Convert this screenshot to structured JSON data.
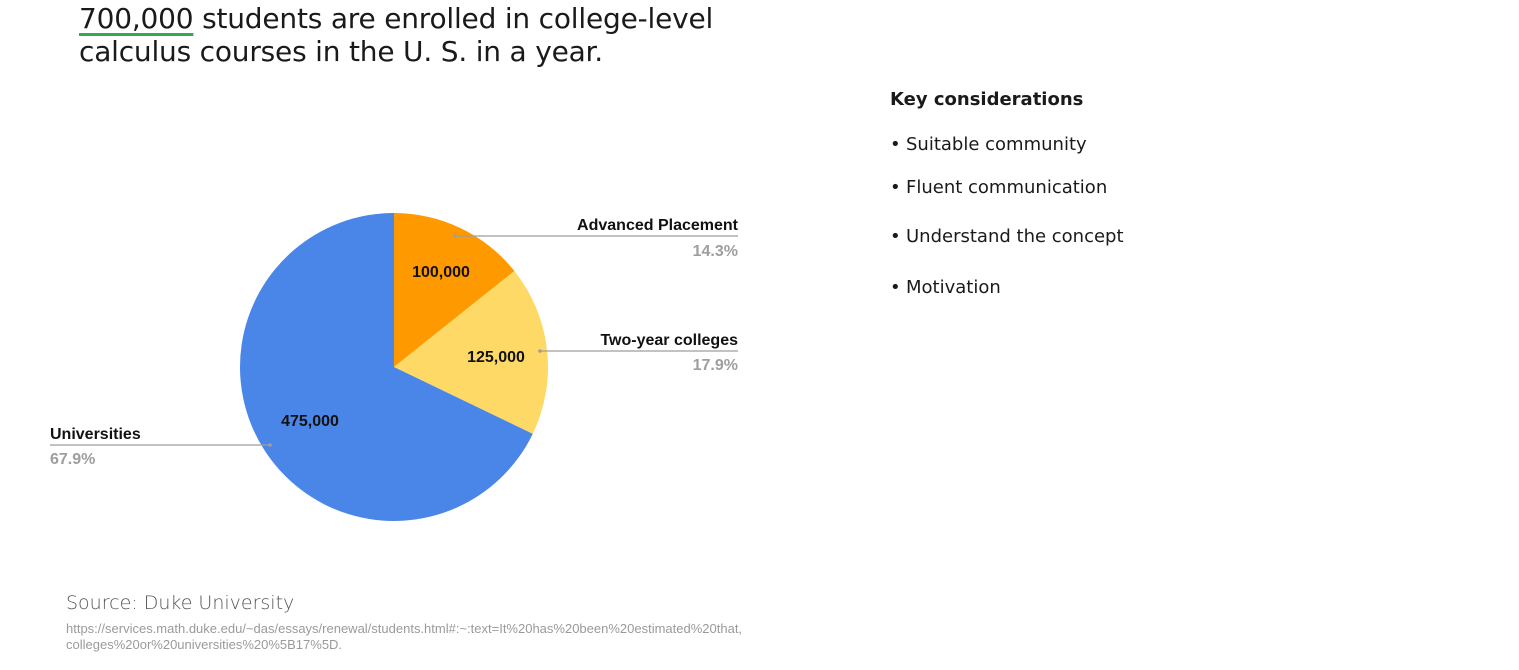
{
  "headline": {
    "highlight": "700,000",
    "rest": " students are enrolled in college-level calculus courses in the U. S. in a year."
  },
  "colors": {
    "accent_underline": "#34a853",
    "universities": "#4a86e8",
    "advanced_placement": "#ff9900",
    "two_year_colleges": "#ffd966"
  },
  "chart_data": {
    "type": "pie",
    "start_angle_deg": 0,
    "direction": "clockwise",
    "slices": [
      {
        "label": "Advanced Placement",
        "value": 100000,
        "value_label": "100,000",
        "percent": "14.3%",
        "color": "#ff9900"
      },
      {
        "label": "Two-year colleges",
        "value": 125000,
        "value_label": "125,000",
        "percent": "17.9%",
        "color": "#ffd966"
      },
      {
        "label": "Universities",
        "value": 475000,
        "value_label": "475,000",
        "percent": "67.9%",
        "color": "#4a86e8"
      }
    ]
  },
  "source": {
    "label": "Source: Duke University",
    "url": "https://services.math.duke.edu/~das/essays/renewal/students.html#:~:text=It%20has%20been%20estimated%20that,colleges%20or%20universities%20%5B17%5D."
  },
  "considerations": {
    "title": "Key considerations",
    "items": [
      "Suitable community",
      "Fluent communication",
      "Understand the concept",
      "Motivation"
    ]
  }
}
